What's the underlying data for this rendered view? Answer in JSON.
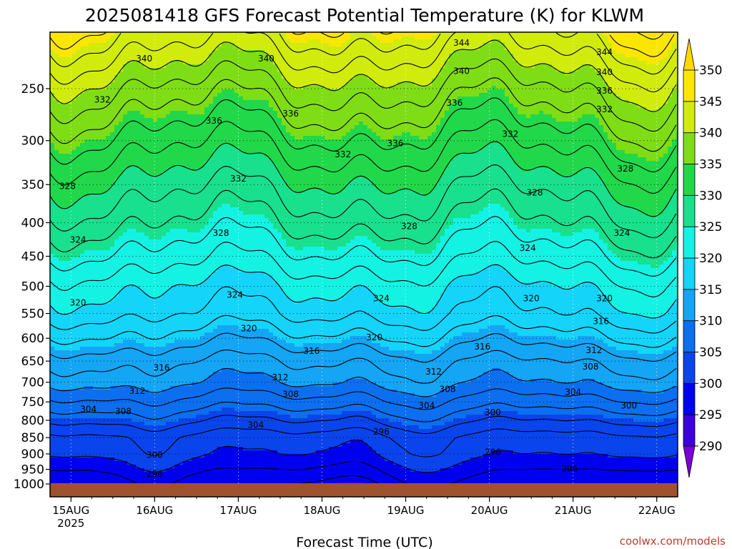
{
  "chart_data": {
    "type": "heatmap",
    "title": "2025081418 GFS Forecast Potential Temperature (K) for KLWM",
    "xlabel": "Forecast Time (UTC)",
    "ylabel": "",
    "x_ticks": [
      {
        "label": "15AUG",
        "sub": "2025",
        "hours": 6
      },
      {
        "label": "16AUG",
        "sub": "",
        "hours": 30
      },
      {
        "label": "17AUG",
        "sub": "",
        "hours": 54
      },
      {
        "label": "18AUG",
        "sub": "",
        "hours": 78
      },
      {
        "label": "19AUG",
        "sub": "",
        "hours": 102
      },
      {
        "label": "20AUG",
        "sub": "",
        "hours": 126
      },
      {
        "label": "21AUG",
        "sub": "",
        "hours": 150
      },
      {
        "label": "22AUG",
        "sub": "",
        "hours": 174
      }
    ],
    "x_range_hours": [
      0,
      180
    ],
    "y_ticks": [
      250,
      300,
      350,
      400,
      450,
      500,
      550,
      600,
      650,
      700,
      750,
      800,
      850,
      900,
      950,
      1000
    ],
    "y_range_hpa": [
      200,
      1010
    ],
    "y_scale": "log-pressure",
    "surface_pressure_hpa": 1005,
    "colorbar": {
      "ticks": [
        290,
        295,
        300,
        305,
        310,
        315,
        320,
        325,
        330,
        335,
        340,
        345,
        350
      ],
      "colors": [
        "#7a00d6",
        "#3c00e0",
        "#0000f0",
        "#0a44ec",
        "#0c6ff0",
        "#14a5f5",
        "#14d4fa",
        "#14f2e4",
        "#18e08c",
        "#21d84a",
        "#7fdd16",
        "#d1ec0c",
        "#fbe600",
        "#ffd800"
      ]
    },
    "profile_hpa": [
      1000,
      950,
      900,
      850,
      800,
      750,
      700,
      650,
      600,
      550,
      500,
      450,
      400,
      350,
      300,
      250,
      200
    ],
    "profile_theta_k": [
      296,
      298,
      300,
      301,
      304,
      307,
      310,
      312,
      315,
      318,
      320,
      323,
      326,
      329,
      333,
      338,
      345
    ],
    "contour_labels": [
      {
        "v": "340",
        "h": 27,
        "p": 225
      },
      {
        "v": "340",
        "h": 62,
        "p": 225
      },
      {
        "v": "344",
        "h": 118,
        "p": 213
      },
      {
        "v": "340",
        "h": 118,
        "p": 235
      },
      {
        "v": "336",
        "h": 116,
        "p": 263
      },
      {
        "v": "344",
        "h": 159,
        "p": 220
      },
      {
        "v": "340",
        "h": 159,
        "p": 236
      },
      {
        "v": "336",
        "h": 159,
        "p": 252
      },
      {
        "v": "332",
        "h": 159,
        "p": 269
      },
      {
        "v": "332",
        "h": 15,
        "p": 260
      },
      {
        "v": "336",
        "h": 47,
        "p": 280
      },
      {
        "v": "336",
        "h": 69,
        "p": 273
      },
      {
        "v": "336",
        "h": 99,
        "p": 303
      },
      {
        "v": "332",
        "h": 84,
        "p": 315
      },
      {
        "v": "332",
        "h": 54,
        "p": 343
      },
      {
        "v": "332",
        "h": 132,
        "p": 293
      },
      {
        "v": "328",
        "h": 5,
        "p": 352
      },
      {
        "v": "328",
        "h": 49,
        "p": 415
      },
      {
        "v": "328",
        "h": 103,
        "p": 405
      },
      {
        "v": "328",
        "h": 139,
        "p": 360
      },
      {
        "v": "328",
        "h": 165,
        "p": 331
      },
      {
        "v": "324",
        "h": 8,
        "p": 425
      },
      {
        "v": "324",
        "h": 53,
        "p": 515
      },
      {
        "v": "324",
        "h": 95,
        "p": 522
      },
      {
        "v": "324",
        "h": 137,
        "p": 437
      },
      {
        "v": "324",
        "h": 164,
        "p": 415
      },
      {
        "v": "320",
        "h": 8,
        "p": 530
      },
      {
        "v": "320",
        "h": 57,
        "p": 580
      },
      {
        "v": "320",
        "h": 93,
        "p": 598
      },
      {
        "v": "320",
        "h": 138,
        "p": 522
      },
      {
        "v": "320",
        "h": 159,
        "p": 522
      },
      {
        "v": "316",
        "h": 158,
        "p": 565
      },
      {
        "v": "316",
        "h": 32,
        "p": 665
      },
      {
        "v": "316",
        "h": 75,
        "p": 627
      },
      {
        "v": "316",
        "h": 124,
        "p": 618
      },
      {
        "v": "312",
        "h": 156,
        "p": 626
      },
      {
        "v": "312",
        "h": 25,
        "p": 722
      },
      {
        "v": "312",
        "h": 66,
        "p": 688
      },
      {
        "v": "312",
        "h": 110,
        "p": 675
      },
      {
        "v": "308",
        "h": 155,
        "p": 663
      },
      {
        "v": "308",
        "h": 69,
        "p": 730
      },
      {
        "v": "308",
        "h": 114,
        "p": 717
      },
      {
        "v": "304",
        "h": 150,
        "p": 725
      },
      {
        "v": "304",
        "h": 11,
        "p": 770
      },
      {
        "v": "308",
        "h": 21,
        "p": 775
      },
      {
        "v": "304",
        "h": 59,
        "p": 813
      },
      {
        "v": "304",
        "h": 108,
        "p": 760
      },
      {
        "v": "300",
        "h": 127,
        "p": 778
      },
      {
        "v": "300",
        "h": 166,
        "p": 760
      },
      {
        "v": "296",
        "h": 95,
        "p": 833
      },
      {
        "v": "300",
        "h": 30,
        "p": 903
      },
      {
        "v": "296",
        "h": 30,
        "p": 965
      },
      {
        "v": "296",
        "h": 127,
        "p": 895
      },
      {
        "v": "296",
        "h": 149,
        "p": 948
      }
    ]
  },
  "watermark": "coolwx.com/models"
}
